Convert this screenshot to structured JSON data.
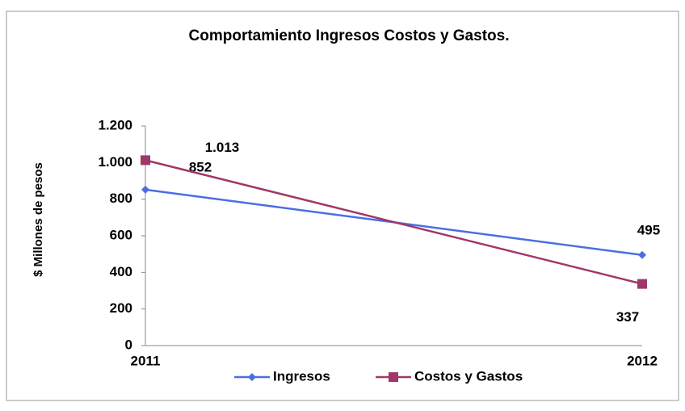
{
  "chart_data": {
    "type": "line",
    "title": "Comportamiento Ingresos Costos y Gastos.",
    "y_label": "$ Millones de pesos",
    "categories": [
      "2011",
      "2012"
    ],
    "series": [
      {
        "name": "Ingresos",
        "color": "#4a6fe3",
        "marker": "diamond",
        "values": [
          852,
          495
        ]
      },
      {
        "name": "Costos y Gastos",
        "color": "#a0376a",
        "marker": "square",
        "values": [
          1013,
          337
        ],
        "value_labels": [
          "1.013",
          "337"
        ]
      }
    ],
    "ylim": [
      0,
      1200
    ],
    "yticks": [
      0,
      200,
      400,
      600,
      800,
      {
        "value": 1000,
        "label": "1.000"
      },
      {
        "value": 1200,
        "label": "1.200"
      }
    ],
    "legend": "bottom"
  }
}
